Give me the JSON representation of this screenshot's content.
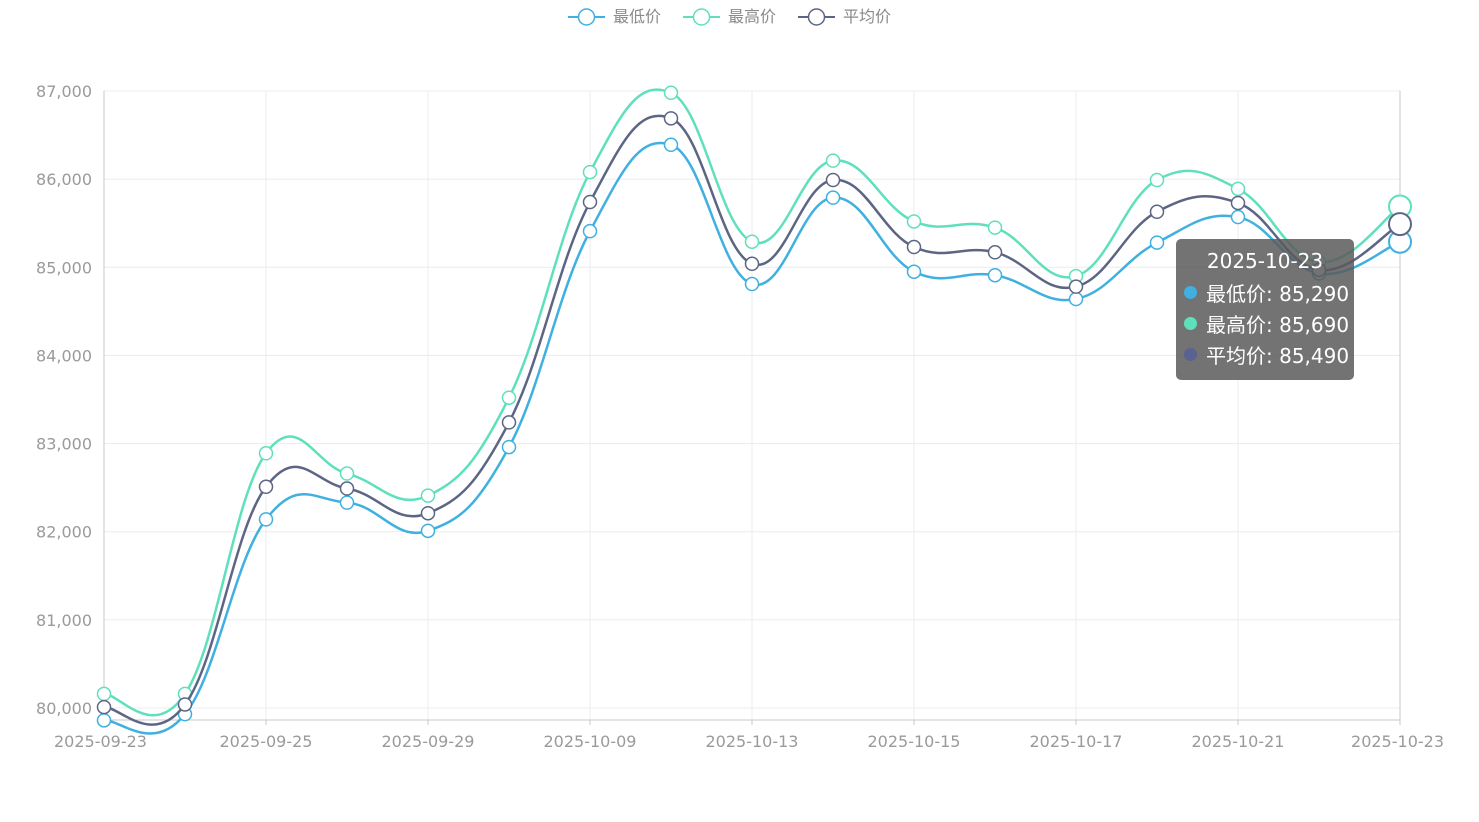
{
  "chart_data": {
    "type": "line",
    "smooth": true,
    "x": [
      "2025-09-23",
      "2025-09-24",
      "2025-09-25",
      "2025-09-26",
      "2025-09-29",
      "2025-09-30",
      "2025-10-09",
      "2025-10-10",
      "2025-10-13",
      "2025-10-14",
      "2025-10-15",
      "2025-10-16",
      "2025-10-17",
      "2025-10-20",
      "2025-10-21",
      "2025-10-22",
      "2025-10-23"
    ],
    "x_tick_labels": [
      "2025-09-23",
      "2025-09-25",
      "2025-09-29",
      "2025-10-09",
      "2025-10-13",
      "2025-10-15",
      "2025-10-17",
      "2025-10-21",
      "2025-10-23"
    ],
    "y_ticks": [
      "80,000",
      "81,000",
      "82,000",
      "83,000",
      "84,000",
      "85,000",
      "86,000",
      "87,000"
    ],
    "ylim": [
      79850,
      87000
    ],
    "grid": true,
    "legend_position": "top-center",
    "series": [
      {
        "name": "最低价",
        "color": "#3fb0e0",
        "values": [
          79860,
          79930,
          82140,
          82330,
          82010,
          82960,
          85410,
          86390,
          84810,
          85790,
          84950,
          84910,
          84640,
          85280,
          85570,
          84930,
          85290
        ]
      },
      {
        "name": "最高价",
        "color": "#5fe0bc",
        "values": [
          80160,
          80160,
          82890,
          82660,
          82410,
          83520,
          86080,
          86980,
          85290,
          86210,
          85520,
          85450,
          84900,
          85990,
          85890,
          85060,
          85690
        ]
      },
      {
        "name": "平均价",
        "color": "#5d6585",
        "values": [
          80010,
          80040,
          82510,
          82490,
          82210,
          83240,
          85740,
          86690,
          85040,
          85990,
          85230,
          85170,
          84780,
          85630,
          85730,
          84970,
          85490
        ]
      }
    ],
    "tooltip": {
      "title": "2025-10-23",
      "rows": [
        {
          "label": "最低价: 85,290",
          "color": "#3fb0e0"
        },
        {
          "label": "最高价: 85,690",
          "color": "#5fe0bc"
        },
        {
          "label": "平均价: 85,490",
          "color": "#5a6290"
        }
      ]
    }
  }
}
